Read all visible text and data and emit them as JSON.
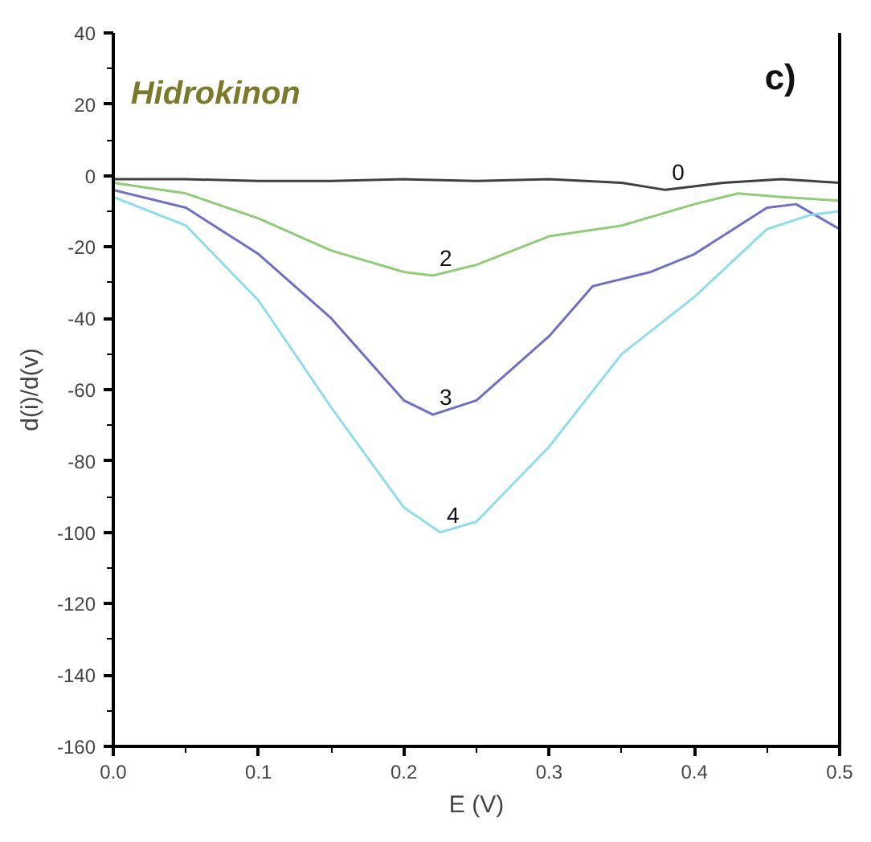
{
  "chart_data": {
    "type": "line",
    "xlabel": "E (V)",
    "ylabel": "d(i)/d(v)",
    "xlim": [
      0,
      0.5
    ],
    "ylim": [
      -160,
      40
    ],
    "xticks": [
      {
        "value": 0,
        "label": "0.0"
      },
      0.1,
      0.2,
      0.3,
      0.4,
      0.5
    ],
    "yticks": [
      -160,
      -140,
      -120,
      -100,
      -80,
      -60,
      -40,
      -20,
      0,
      20,
      40
    ],
    "grid": false,
    "marker": "none",
    "line_style": "solid",
    "annotations": [
      "Hidrokinon",
      "c)"
    ],
    "series": [
      {
        "name": "0",
        "color": "#404040",
        "x": [
          0,
          0.05,
          0.1,
          0.15,
          0.2,
          0.25,
          0.3,
          0.35,
          0.38,
          0.42,
          0.46,
          0.5
        ],
        "values": [
          -1,
          -1,
          -1.5,
          -1.5,
          -1,
          -1.5,
          -1,
          -2,
          -4,
          -2,
          -1,
          -2
        ]
      },
      {
        "name": "2",
        "color": "#8fcc7a",
        "x": [
          0,
          0.05,
          0.1,
          0.15,
          0.2,
          0.22,
          0.25,
          0.3,
          0.35,
          0.4,
          0.43,
          0.46,
          0.5
        ],
        "values": [
          -2,
          -5,
          -12,
          -21,
          -27,
          -28,
          -25,
          -17,
          -14,
          -8,
          -5,
          -6,
          -7
        ]
      },
      {
        "name": "3",
        "color": "#6f6fc4",
        "x": [
          0,
          0.05,
          0.1,
          0.15,
          0.2,
          0.22,
          0.25,
          0.3,
          0.33,
          0.37,
          0.4,
          0.45,
          0.47,
          0.5
        ],
        "values": [
          -4,
          -9,
          -22,
          -40,
          -63,
          -67,
          -63,
          -45,
          -31,
          -27,
          -22,
          -9,
          -8,
          -15
        ]
      },
      {
        "name": "4",
        "color": "#8fdceb",
        "x": [
          0,
          0.05,
          0.1,
          0.15,
          0.2,
          0.225,
          0.25,
          0.3,
          0.35,
          0.4,
          0.45,
          0.48,
          0.5
        ],
        "values": [
          -6,
          -14,
          -35,
          -65,
          -93,
          -100,
          -97,
          -76,
          -50,
          -34,
          -15,
          -11,
          -10
        ]
      }
    ]
  }
}
